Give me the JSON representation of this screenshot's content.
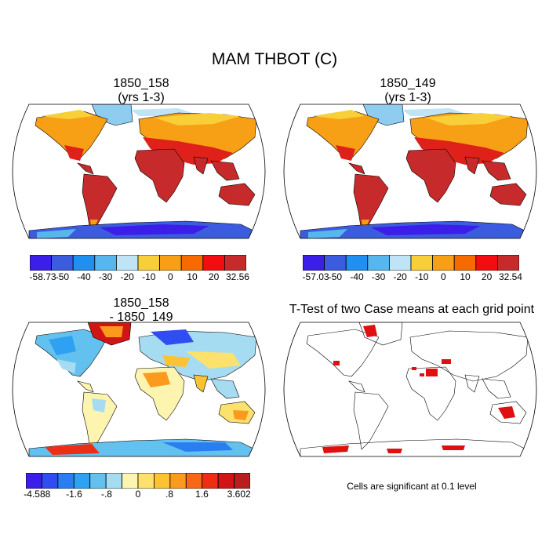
{
  "title": "MAM THBOT (C)",
  "panels": {
    "top_left": {
      "title_line1": "1850_158",
      "title_line2": "(yrs 1-3)"
    },
    "top_right": {
      "title_line1": "1850_149",
      "title_line2": "(yrs 1-3)"
    },
    "bottom_left": {
      "title_line1": "1850_158",
      "title_line2": "- 1850_149"
    },
    "bottom_right": {
      "title_line1": "T-Test of two Case means at each grid point",
      "note": "Cells are significant at 0.1 level"
    }
  },
  "colorbars": {
    "cb1": {
      "labels": [
        "-58.73",
        "-50",
        "-40",
        "-30",
        "-20",
        "-10",
        "0",
        "10",
        "20",
        "32.56"
      ],
      "colors": [
        "#3b1ee8",
        "#3c5ce0",
        "#1f8ff0",
        "#58b6ee",
        "#bfe4f5",
        "#f8cf38",
        "#f7a016",
        "#f76a00",
        "#f30d10",
        "#c72a2a"
      ]
    },
    "cb2": {
      "labels": [
        "-57.03",
        "-50",
        "-40",
        "-30",
        "-20",
        "-10",
        "0",
        "10",
        "20",
        "32.54"
      ],
      "colors": [
        "#3b1ee8",
        "#3c5ce0",
        "#1f8ff0",
        "#58b6ee",
        "#bfe4f5",
        "#f8cf38",
        "#f7a016",
        "#f76a00",
        "#f30d10",
        "#c72a2a"
      ]
    },
    "cb3": {
      "labels": [
        "-4.588",
        "-1.6",
        "-.8",
        "0",
        ".8",
        "1.6",
        "3.602"
      ],
      "colors": [
        "#3b1ee8",
        "#2f4df0",
        "#2a7ef2",
        "#2ea1f2",
        "#63c1ef",
        "#a6dcf2",
        "#fdf4b0",
        "#fce16c",
        "#fbc333",
        "#fb9a1c",
        "#f86618",
        "#ee2e14",
        "#d21414",
        "#b81e1e"
      ]
    }
  }
}
